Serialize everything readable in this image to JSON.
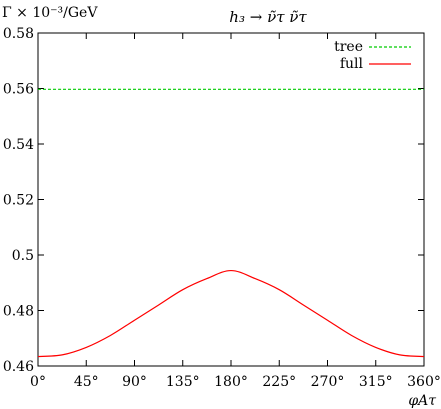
{
  "chart_data": {
    "type": "line",
    "title": "h₃ → ν̃τ ν̃τ",
    "ylabel": "Γ × 10⁻³/GeV",
    "xlabel": "φAτ",
    "xlim": [
      0,
      360
    ],
    "ylim": [
      0.46,
      0.58
    ],
    "xticks": [
      0,
      45,
      90,
      135,
      180,
      225,
      270,
      315,
      360
    ],
    "xtick_labels": [
      "0°",
      "45°",
      "90°",
      "135°",
      "180°",
      "225°",
      "270°",
      "315°",
      "360°"
    ],
    "yticks": [
      0.46,
      0.48,
      0.5,
      0.52,
      0.54,
      0.56,
      0.58
    ],
    "ytick_labels": [
      "0.46",
      "0.48",
      "0.5",
      "0.52",
      "0.54",
      "0.56",
      "0.58"
    ],
    "grid": false,
    "legend_position": "top-right",
    "x": [
      0,
      22.5,
      45,
      67.5,
      90,
      112.5,
      135,
      157.5,
      180,
      202.5,
      225,
      247.5,
      270,
      292.5,
      315,
      337.5,
      360
    ],
    "series": [
      {
        "name": "tree",
        "color": "#00cc00",
        "dash": "dashed",
        "values": [
          0.5597,
          0.5597,
          0.5597,
          0.5597,
          0.5597,
          0.5597,
          0.5597,
          0.5597,
          0.5597,
          0.5597,
          0.5597,
          0.5597,
          0.5597,
          0.5597,
          0.5597,
          0.5597,
          0.5597
        ]
      },
      {
        "name": "full",
        "color": "#ff0000",
        "dash": "solid",
        "values": [
          0.4634,
          0.464,
          0.4667,
          0.471,
          0.4765,
          0.482,
          0.4875,
          0.4915,
          0.4944,
          0.4915,
          0.4875,
          0.482,
          0.4765,
          0.471,
          0.4667,
          0.464,
          0.4634
        ]
      }
    ]
  }
}
